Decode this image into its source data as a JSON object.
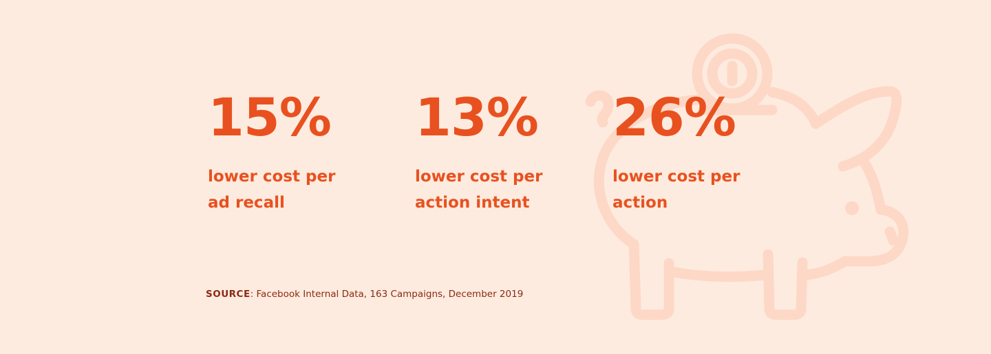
{
  "colors": {
    "background": "#FEEBDF",
    "accent": "#E8511F",
    "illustration": "#FDD8C6",
    "source_text": "#8A2A12"
  },
  "illustration": {
    "icon": "piggy-bank-with-coin-icon"
  },
  "stats": [
    {
      "value": "15%",
      "label": "lower cost per\nad recall"
    },
    {
      "value": "13%",
      "label": "lower cost per\naction intent"
    },
    {
      "value": "26%",
      "label": "lower cost per\naction"
    }
  ],
  "source": {
    "key": "SOURCE",
    "text": ": Facebook Internal Data, 163 Campaigns, December 2019"
  }
}
